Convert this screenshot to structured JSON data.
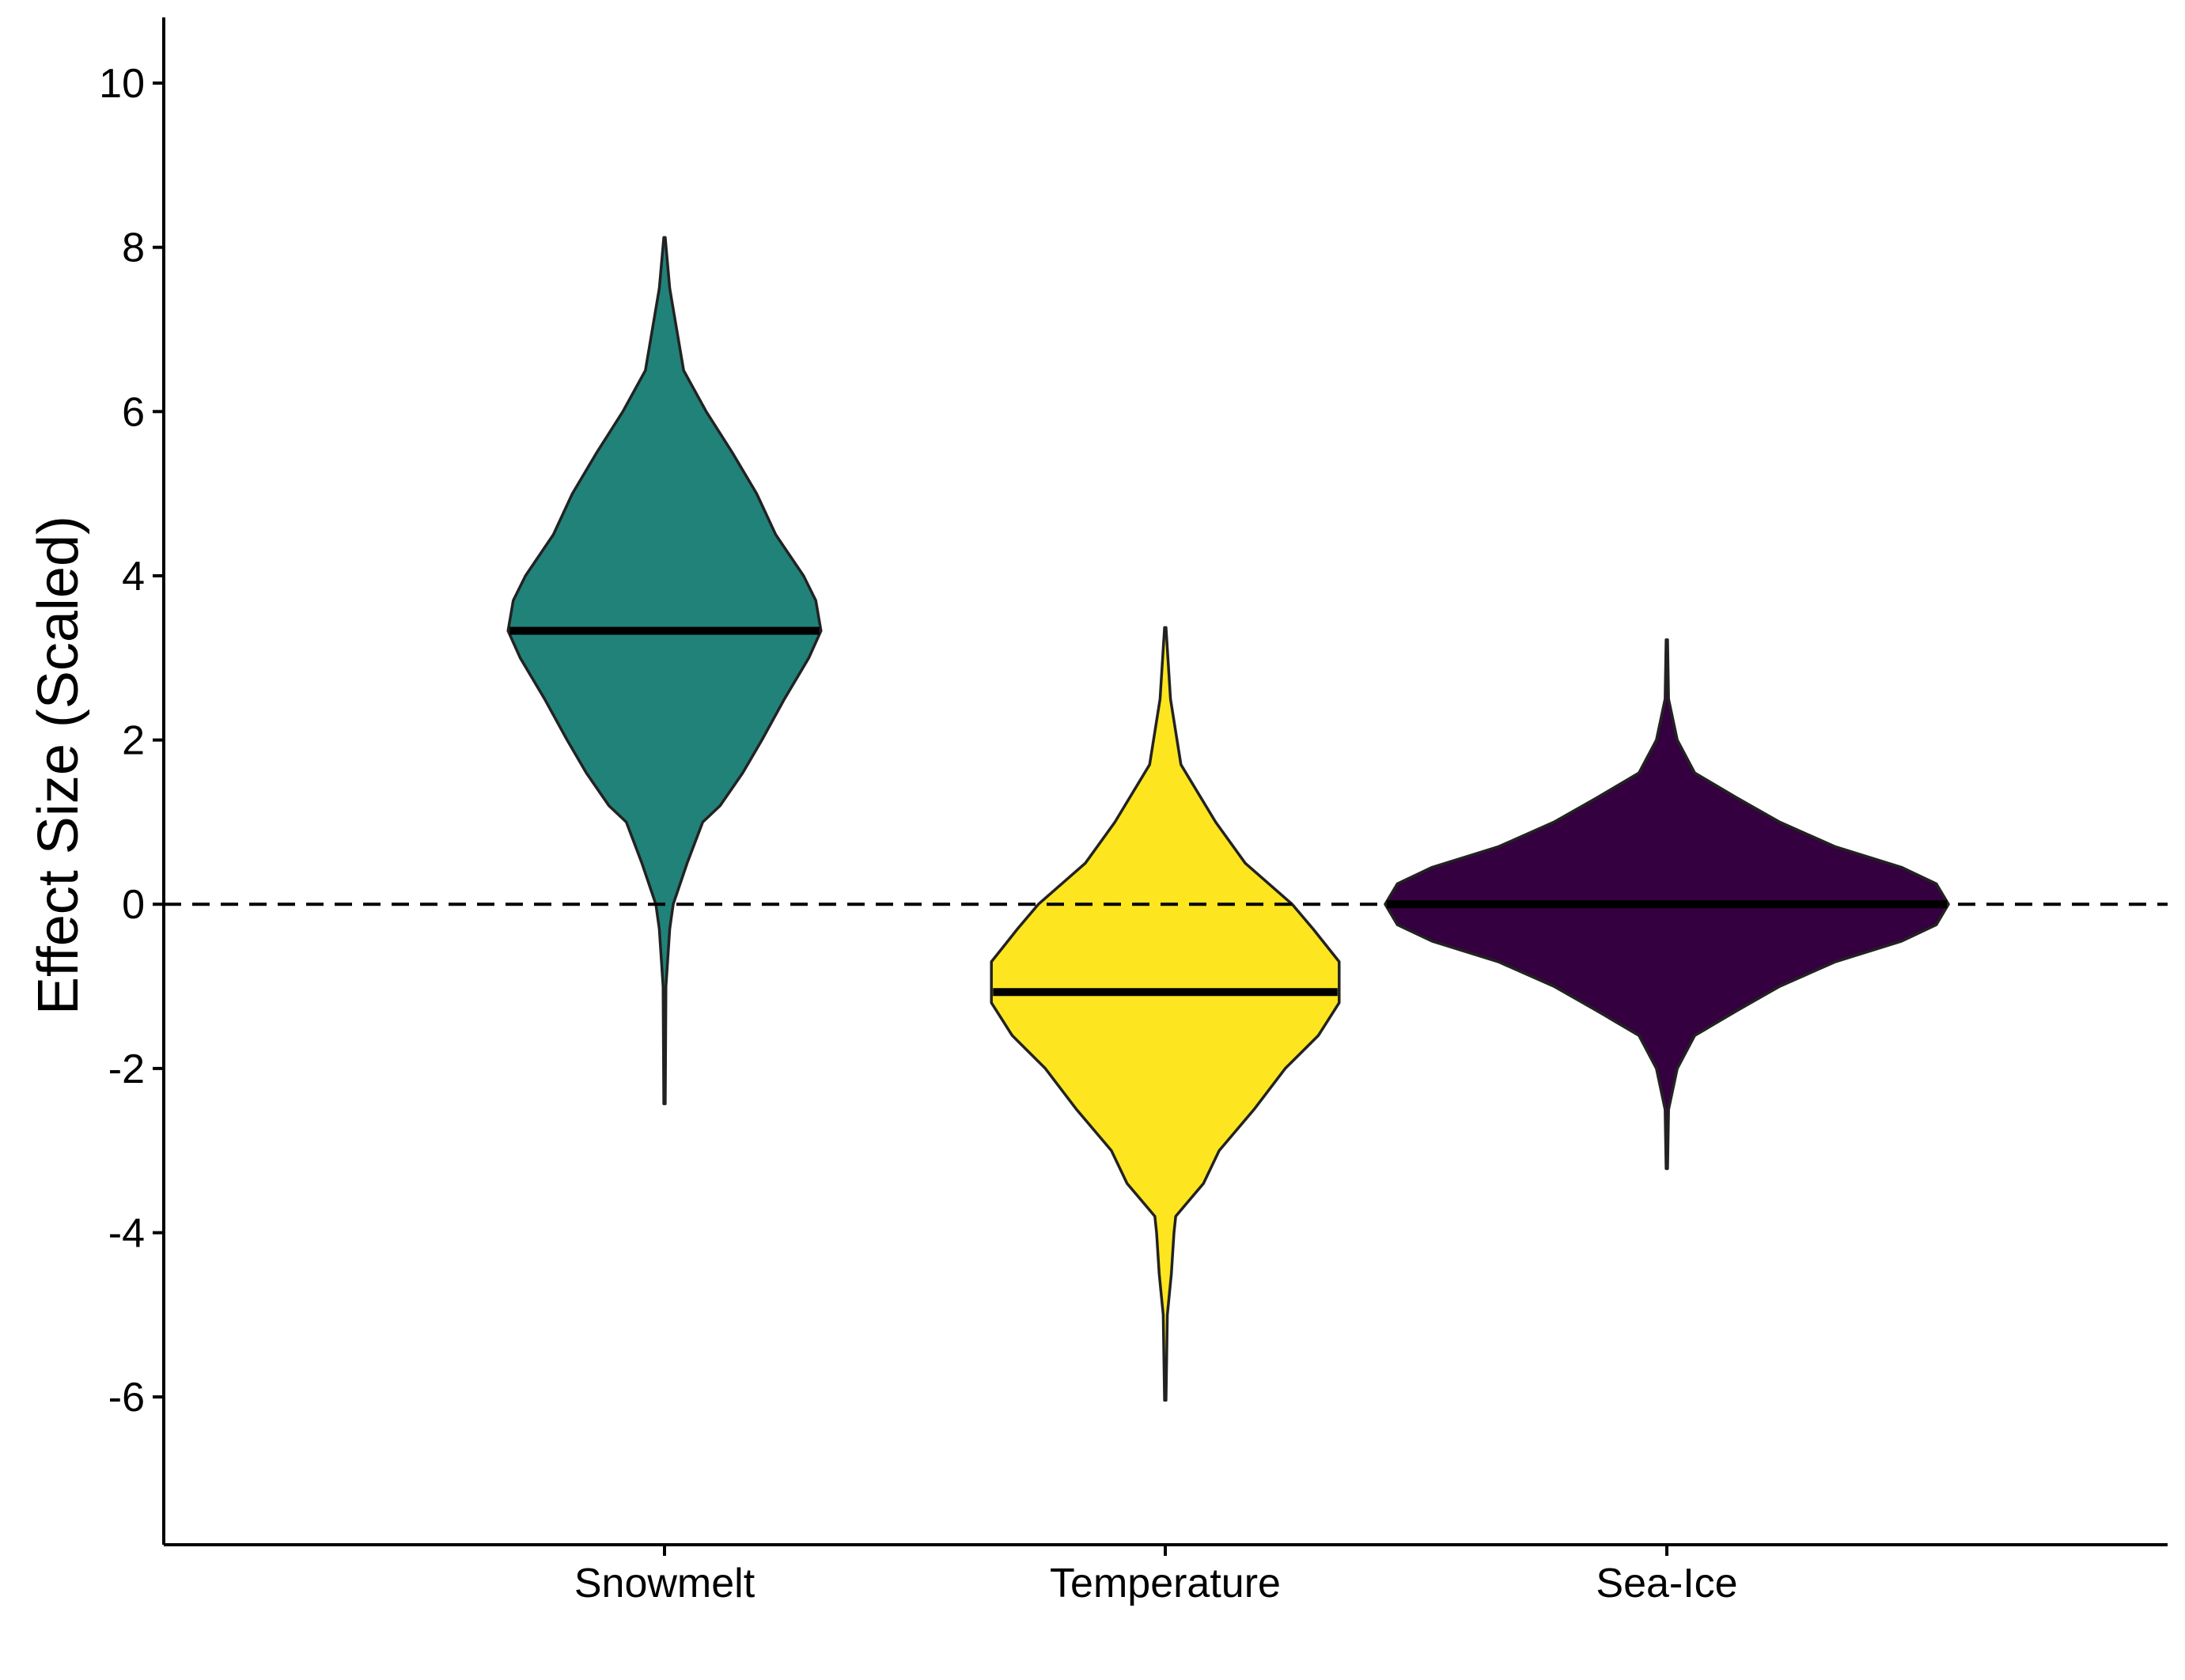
{
  "chart_data": {
    "type": "violin",
    "ylabel": "Effect Size (Scaled)",
    "xlabel": "",
    "ylim": [
      -7.8,
      10.8
    ],
    "yticks": [
      -6,
      -4,
      -2,
      0,
      2,
      4,
      6,
      8,
      10
    ],
    "categories": [
      "Snowmelt",
      "Temperature",
      "Sea-Ice"
    ],
    "reference_line": {
      "y": 0,
      "style": "dashed"
    },
    "grid": false,
    "legend": "none",
    "series": [
      {
        "category": "Snowmelt",
        "color": "#21827A",
        "median": 3.33,
        "min": -2.43,
        "max": 8.12,
        "density": [
          [
            -2.43,
            0.004
          ],
          [
            -1.0,
            0.008
          ],
          [
            -0.3,
            0.03
          ],
          [
            0.0,
            0.05
          ],
          [
            0.5,
            0.13
          ],
          [
            1.0,
            0.22
          ],
          [
            1.2,
            0.32
          ],
          [
            1.6,
            0.45
          ],
          [
            2.0,
            0.56
          ],
          [
            2.5,
            0.69
          ],
          [
            3.0,
            0.83
          ],
          [
            3.33,
            0.9
          ],
          [
            3.7,
            0.87
          ],
          [
            4.0,
            0.8
          ],
          [
            4.5,
            0.64
          ],
          [
            5.0,
            0.53
          ],
          [
            5.5,
            0.39
          ],
          [
            6.0,
            0.24
          ],
          [
            6.5,
            0.11
          ],
          [
            7.0,
            0.07
          ],
          [
            7.5,
            0.03
          ],
          [
            8.12,
            0.004
          ]
        ]
      },
      {
        "category": "Temperature",
        "color": "#FDE620",
        "median": -1.07,
        "min": -6.04,
        "max": 3.37,
        "density": [
          [
            -6.04,
            0.004
          ],
          [
            -5.0,
            0.012
          ],
          [
            -4.5,
            0.035
          ],
          [
            -4.0,
            0.05
          ],
          [
            -3.8,
            0.06
          ],
          [
            -3.4,
            0.22
          ],
          [
            -3.0,
            0.31
          ],
          [
            -2.5,
            0.51
          ],
          [
            -2.0,
            0.69
          ],
          [
            -1.6,
            0.88
          ],
          [
            -1.2,
            1.0
          ],
          [
            -0.7,
            1.0
          ],
          [
            -0.3,
            0.85
          ],
          [
            0.0,
            0.73
          ],
          [
            0.5,
            0.46
          ],
          [
            1.0,
            0.29
          ],
          [
            1.7,
            0.09
          ],
          [
            2.5,
            0.03
          ],
          [
            3.37,
            0.004
          ]
        ]
      },
      {
        "category": "Sea-Ice",
        "color": "#35003F",
        "median": 0.0,
        "min": -3.22,
        "max": 3.22,
        "density": [
          [
            -3.22,
            0.004
          ],
          [
            -2.5,
            0.01
          ],
          [
            -2.0,
            0.06
          ],
          [
            -1.6,
            0.16
          ],
          [
            -1.3,
            0.4
          ],
          [
            -1.0,
            0.65
          ],
          [
            -0.7,
            0.97
          ],
          [
            -0.45,
            1.35
          ],
          [
            -0.25,
            1.55
          ],
          [
            0.0,
            1.62
          ],
          [
            0.25,
            1.55
          ],
          [
            0.45,
            1.35
          ],
          [
            0.7,
            0.97
          ],
          [
            1.0,
            0.65
          ],
          [
            1.3,
            0.4
          ],
          [
            1.6,
            0.16
          ],
          [
            2.0,
            0.06
          ],
          [
            2.5,
            0.01
          ],
          [
            3.22,
            0.004
          ]
        ]
      }
    ]
  }
}
